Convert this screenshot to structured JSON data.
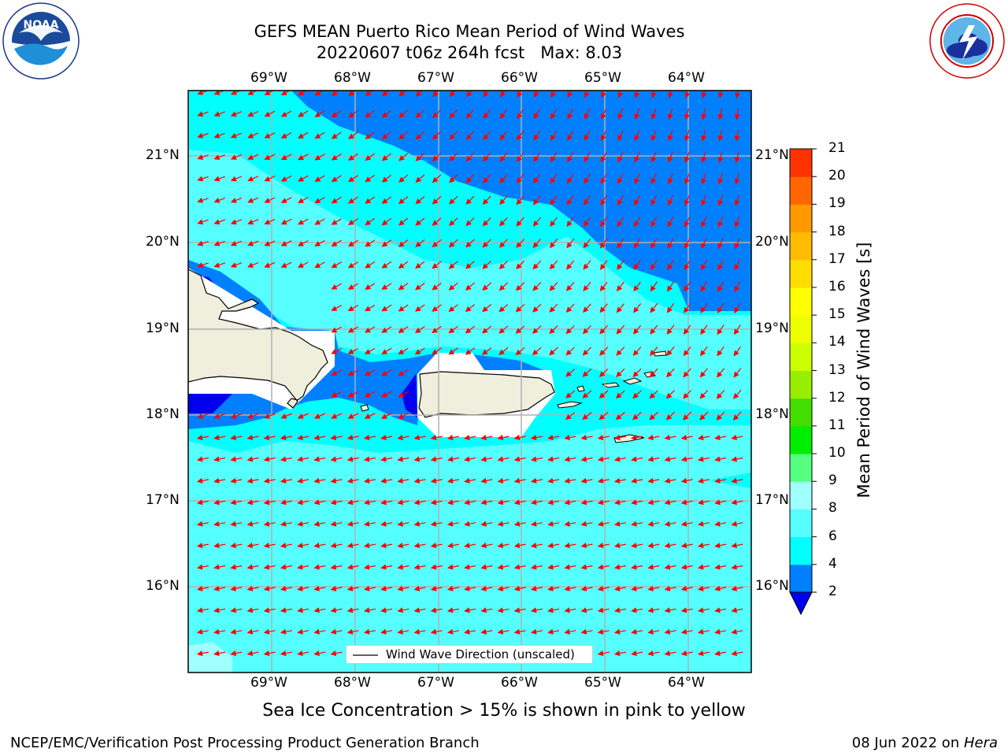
{
  "header": {
    "title_line1": "GEFS MEAN Puerto Rico Mean Period of Wind Waves",
    "title_line2": "20220607 t06z 264h fcst   Max: 8.03"
  },
  "logos": {
    "noaa_text": "NOAA",
    "noaa_ring": "NATIONAL OCEANIC AND ATMOSPHERIC ADMINISTRATION · U.S. DEPARTMENT OF COMMERCE",
    "nws_ring": "NATIONAL WEATHER SERVICE"
  },
  "map": {
    "lon_labels": [
      "69°W",
      "68°W",
      "67°W",
      "66°W",
      "65°W",
      "64°W"
    ],
    "lat_labels": [
      "21°N",
      "20°N",
      "19°N",
      "18°N",
      "17°N",
      "16°N"
    ],
    "legend_label": "Wind Wave Direction (unscaled)",
    "arrow_color": "#ff0000",
    "land_color": "#f0eedc"
  },
  "colorbar": {
    "label": "Mean Period of Wind Waves [s]",
    "ticks": [
      "2",
      "4",
      "6",
      "8",
      "9",
      "10",
      "11",
      "12",
      "13",
      "14",
      "15",
      "16",
      "17",
      "18",
      "19",
      "20",
      "21"
    ],
    "colors": [
      "#0080ff",
      "#00ffff",
      "#55ffff",
      "#a0ffff",
      "#55ff80",
      "#00ee00",
      "#44dd00",
      "#99ee00",
      "#ccff00",
      "#eeff00",
      "#ffff00",
      "#ffdd00",
      "#ffbb00",
      "#ff9900",
      "#ff6600",
      "#ff3300",
      "#ff0000"
    ],
    "under_color": "#0000ee"
  },
  "sea_ice_note": "Sea Ice Concentration > 15% is shown in pink to yellow",
  "footer": {
    "left": "NCEP/EMC/Verification Post Processing Product Generation Branch",
    "right_prefix": "08 Jun 2022 on ",
    "right_host": "Hera"
  }
}
